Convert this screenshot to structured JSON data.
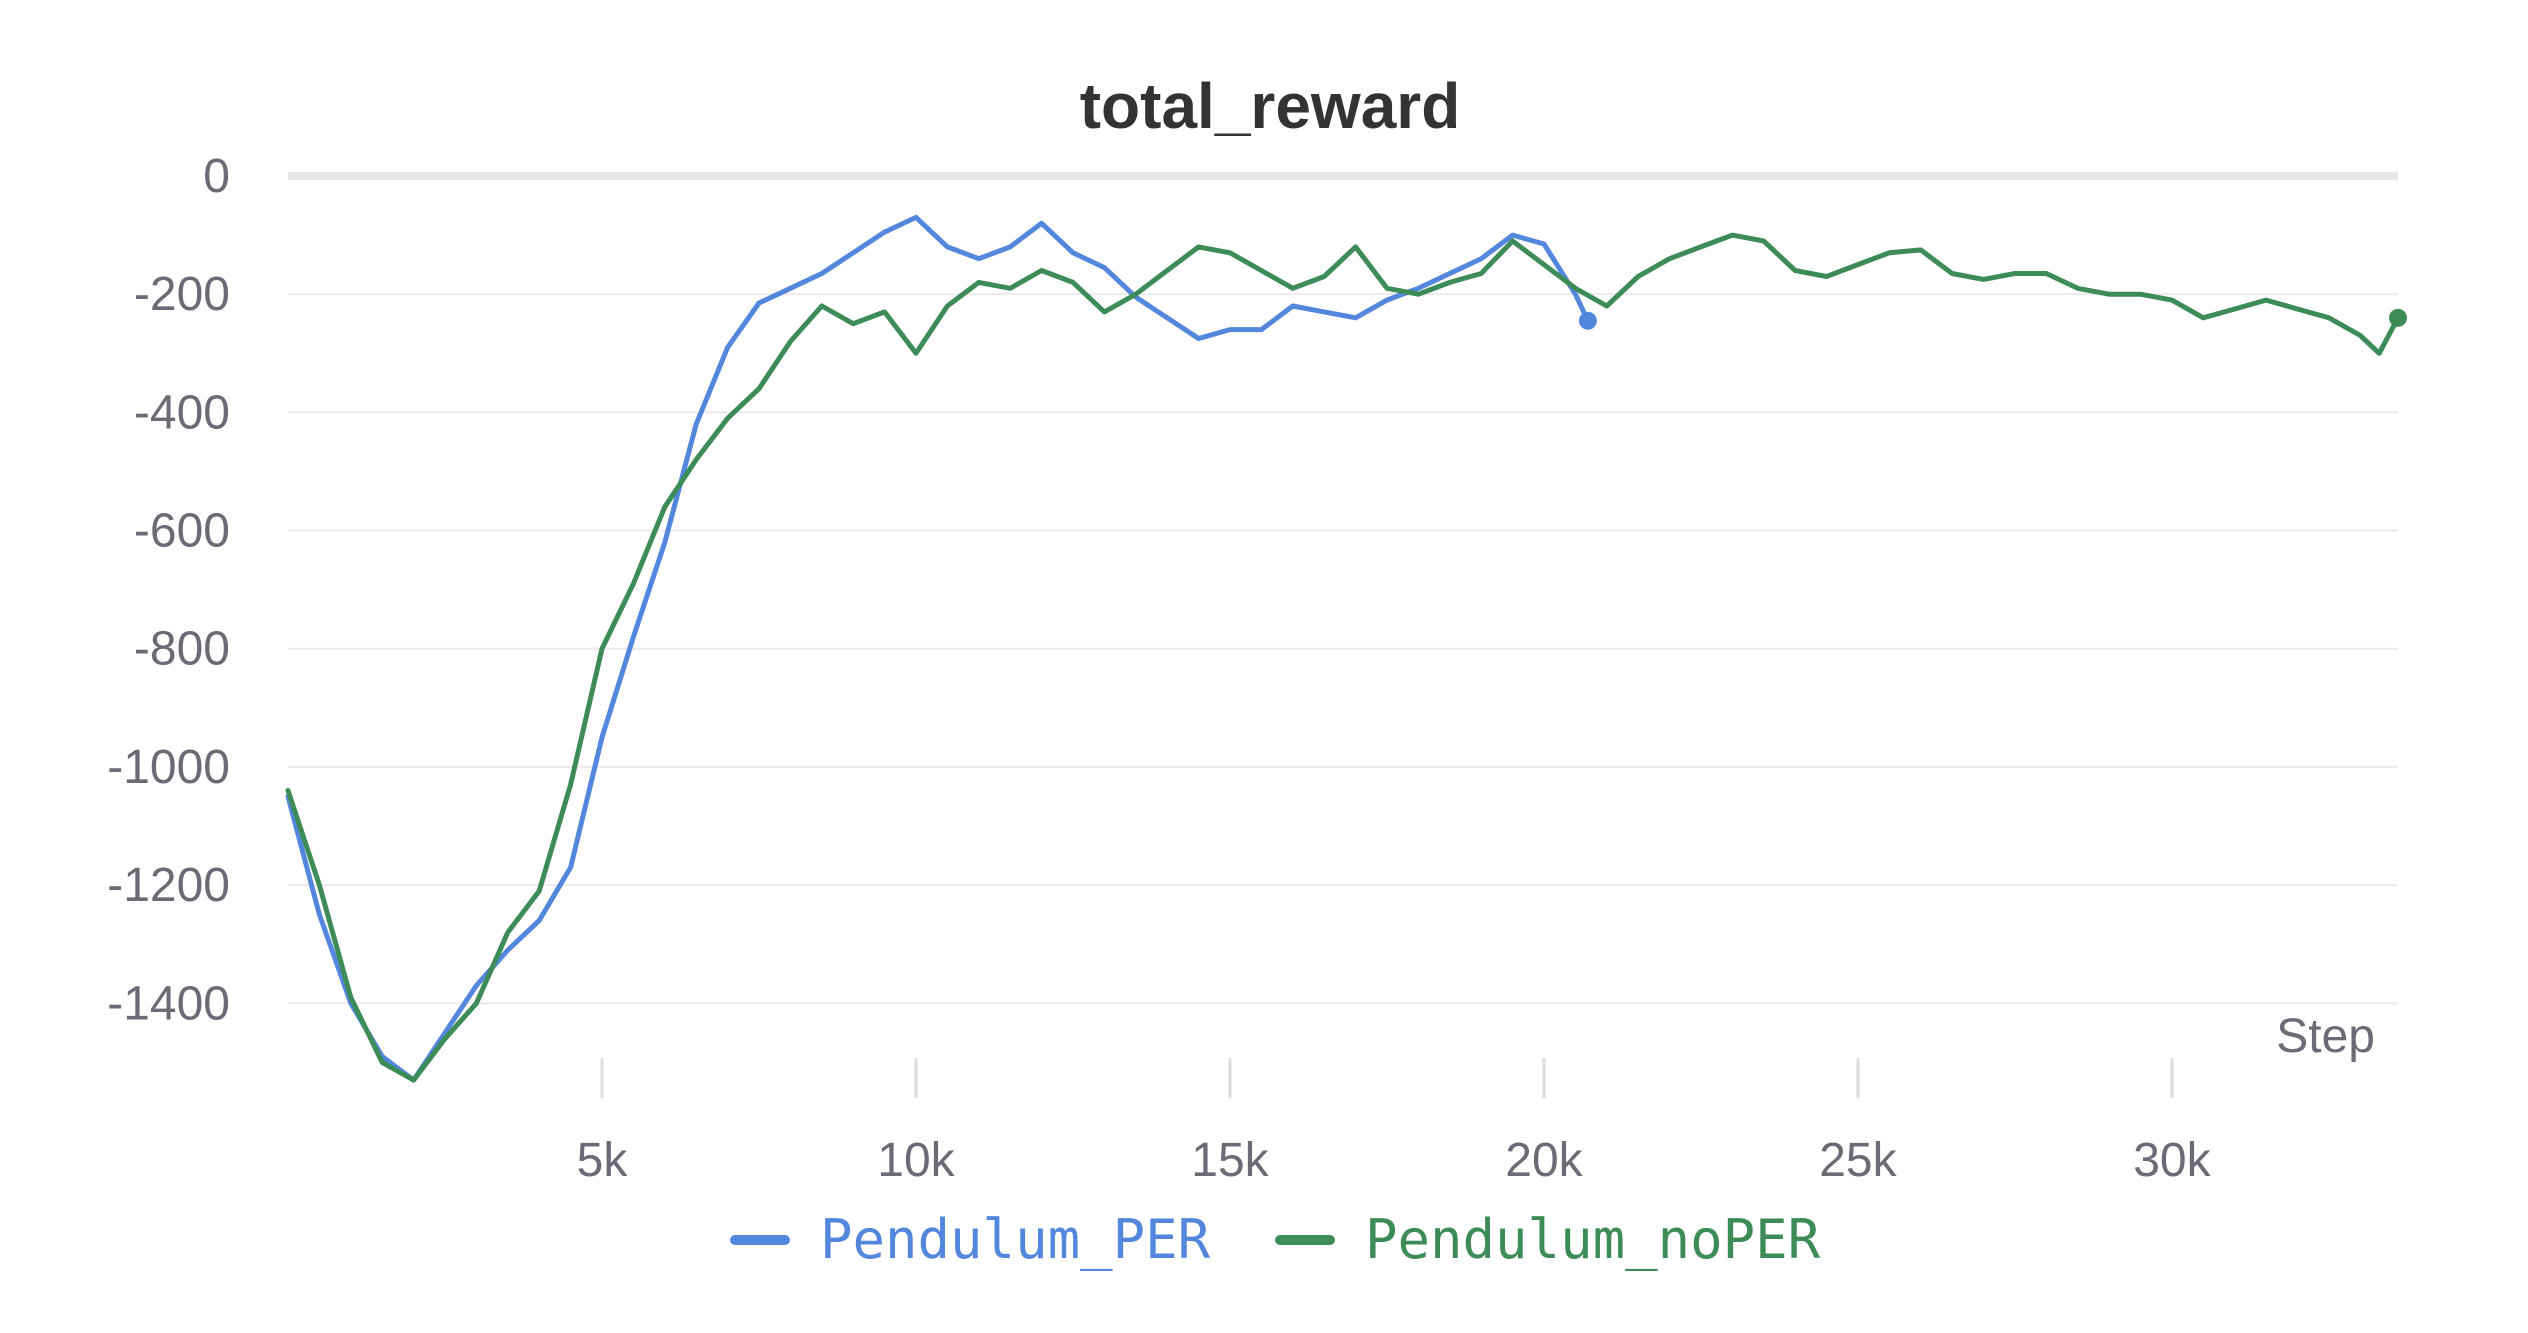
{
  "chart_data": {
    "type": "line",
    "title": "total_reward",
    "xlabel": "Step",
    "ylabel": "",
    "xlim": [
      0,
      33600
    ],
    "ylim": [
      -1540,
      0
    ],
    "grid": true,
    "legend_position": "bottom-center",
    "x_ticks": [
      {
        "value": 5000,
        "label": "5k"
      },
      {
        "value": 10000,
        "label": "10k"
      },
      {
        "value": 15000,
        "label": "15k"
      },
      {
        "value": 20000,
        "label": "20k"
      },
      {
        "value": 25000,
        "label": "25k"
      },
      {
        "value": 30000,
        "label": "30k"
      }
    ],
    "y_ticks": [
      {
        "value": 0,
        "label": "0"
      },
      {
        "value": -200,
        "label": "-200"
      },
      {
        "value": -400,
        "label": "-400"
      },
      {
        "value": -600,
        "label": "-600"
      },
      {
        "value": -800,
        "label": "-800"
      },
      {
        "value": -1000,
        "label": "-1000"
      },
      {
        "value": -1200,
        "label": "-1200"
      },
      {
        "value": -1400,
        "label": "-1400"
      }
    ],
    "series": [
      {
        "name": "Pendulum_PER",
        "color": "#5387dd",
        "x": [
          0,
          500,
          1000,
          1500,
          2000,
          2500,
          3000,
          3500,
          4000,
          4500,
          5000,
          5500,
          6000,
          6500,
          7000,
          7500,
          8000,
          8500,
          9000,
          9500,
          10000,
          10500,
          11000,
          11500,
          12000,
          12500,
          13000,
          13500,
          14000,
          14500,
          15000,
          15500,
          16000,
          16500,
          17000,
          17500,
          18000,
          18500,
          19000,
          19500,
          20000,
          20500,
          20700
        ],
        "y": [
          -1050,
          -1250,
          -1400,
          -1490,
          -1530,
          -1450,
          -1370,
          -1310,
          -1260,
          -1170,
          -950,
          -780,
          -620,
          -420,
          -290,
          -215,
          -190,
          -165,
          -130,
          -95,
          -70,
          -120,
          -140,
          -120,
          -80,
          -130,
          -155,
          -205,
          -240,
          -275,
          -260,
          -260,
          -220,
          -230,
          -240,
          -210,
          -190,
          -165,
          -140,
          -100,
          -115,
          -200,
          -245
        ]
      },
      {
        "name": "Pendulum_noPER",
        "color": "#3d8c58",
        "x": [
          0,
          500,
          1000,
          1500,
          2000,
          2500,
          3000,
          3500,
          4000,
          4500,
          5000,
          5500,
          6000,
          6500,
          7000,
          7500,
          8000,
          8500,
          9000,
          9500,
          10000,
          10500,
          11000,
          11500,
          12000,
          12500,
          13000,
          13500,
          14000,
          14500,
          15000,
          15500,
          16000,
          16500,
          17000,
          17500,
          18000,
          18500,
          19000,
          19500,
          20000,
          20500,
          21000,
          21500,
          22000,
          22500,
          23000,
          23500,
          24000,
          24500,
          25000,
          25500,
          26000,
          26500,
          27000,
          27500,
          28000,
          28500,
          29000,
          29500,
          30000,
          30500,
          31000,
          31500,
          32000,
          32500,
          33000,
          33300,
          33600
        ],
        "y": [
          -1040,
          -1200,
          -1390,
          -1500,
          -1530,
          -1460,
          -1400,
          -1280,
          -1210,
          -1030,
          -800,
          -690,
          -560,
          -480,
          -410,
          -360,
          -280,
          -220,
          -250,
          -230,
          -300,
          -220,
          -180,
          -190,
          -160,
          -180,
          -230,
          -200,
          -160,
          -120,
          -130,
          -160,
          -190,
          -170,
          -120,
          -190,
          -200,
          -180,
          -165,
          -110,
          -150,
          -190,
          -220,
          -170,
          -140,
          -120,
          -100,
          -110,
          -160,
          -170,
          -150,
          -130,
          -125,
          -165,
          -175,
          -165,
          -165,
          -190,
          -200,
          -200,
          -210,
          -240,
          -225,
          -210,
          -225,
          -240,
          -270,
          -300,
          -240
        ]
      }
    ]
  }
}
